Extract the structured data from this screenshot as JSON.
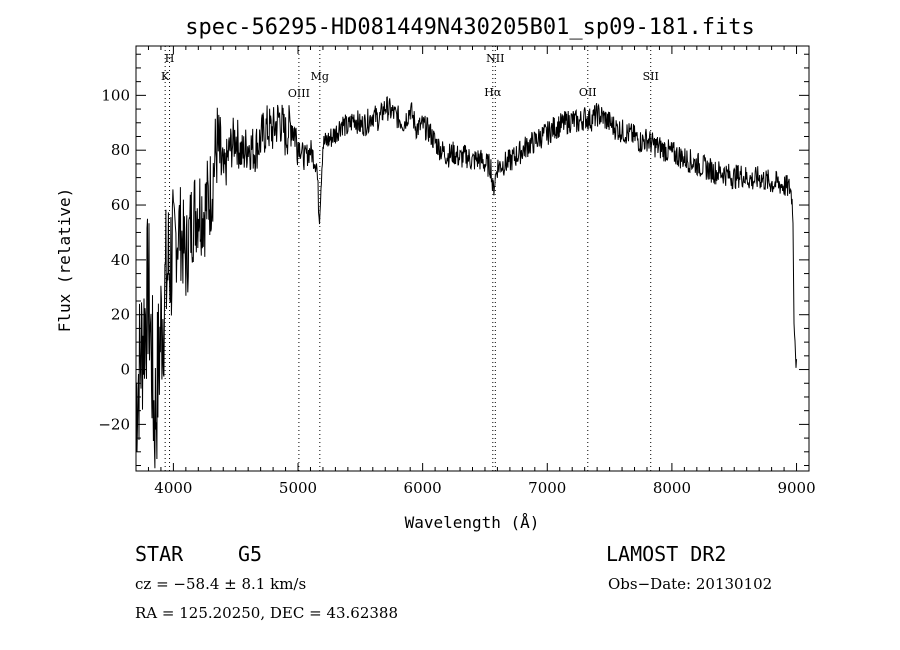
{
  "chart_data": {
    "type": "line",
    "title": "spec-56295-HD081449N430205B01_sp09-181.fits",
    "xlabel": "Wavelength (Å)",
    "ylabel": "Flux (relative)",
    "xlim": [
      3700,
      9100
    ],
    "ylim": [
      -37,
      118
    ],
    "x_ticks": [
      4000,
      5000,
      6000,
      7000,
      8000,
      9000
    ],
    "y_ticks": [
      -20,
      0,
      20,
      40,
      60,
      80,
      100
    ],
    "grid": false,
    "series": [
      {
        "x": [
          3700,
          3750,
          3800,
          3850,
          3900,
          3950,
          4000,
          4050,
          4100,
          4150,
          4200,
          4250,
          4300,
          4350,
          4400,
          4450,
          4500,
          4550,
          4600,
          4650,
          4700,
          4750,
          4800,
          4850,
          4900,
          4950,
          5000,
          5050,
          5100,
          5150,
          5170,
          5200,
          5250,
          5300,
          5350,
          5400,
          5450,
          5500,
          5550,
          5600,
          5650,
          5700,
          5750,
          5800,
          5850,
          5900,
          5950,
          6000,
          6050,
          6100,
          6150,
          6200,
          6250,
          6300,
          6350,
          6400,
          6450,
          6500,
          6550,
          6563,
          6600,
          6650,
          6700,
          6750,
          6800,
          6850,
          6900,
          6950,
          7000,
          7050,
          7100,
          7150,
          7200,
          7250,
          7300,
          7350,
          7400,
          7450,
          7500,
          7550,
          7600,
          7650,
          7700,
          7750,
          7800,
          7850,
          7900,
          7950,
          8000,
          8050,
          8100,
          8150,
          8200,
          8250,
          8300,
          8350,
          8400,
          8450,
          8500,
          8550,
          8600,
          8650,
          8700,
          8750,
          8800,
          8850,
          8900,
          8950,
          8970,
          8980,
          9000
        ],
        "y": [
          -10,
          10,
          30,
          -20,
          15,
          35,
          45,
          52,
          40,
          55,
          60,
          58,
          65,
          82,
          70,
          80,
          85,
          78,
          82,
          80,
          84,
          88,
          87,
          92,
          85,
          90,
          83,
          77,
          80,
          75,
          55,
          82,
          84,
          86,
          90,
          88,
          92,
          89,
          90,
          93,
          91,
          96,
          94,
          92,
          90,
          95,
          88,
          89,
          87,
          83,
          80,
          78,
          79,
          77,
          78,
          76,
          77,
          75,
          74,
          65,
          74,
          75,
          76,
          78,
          80,
          82,
          83,
          85,
          86,
          88,
          89,
          90,
          91,
          90,
          92,
          91,
          93,
          92,
          90,
          88,
          87,
          86,
          85,
          83,
          84,
          82,
          81,
          80,
          79,
          78,
          77,
          76,
          75,
          74,
          73,
          72,
          72,
          71,
          70,
          71,
          70,
          69,
          70,
          69,
          68,
          68,
          67,
          66,
          60,
          20,
          0
        ]
      }
    ],
    "lines": [
      {
        "name": "K",
        "wavelength": 3934
      },
      {
        "name": "H",
        "wavelength": 3969
      },
      {
        "name": "OIII",
        "wavelength": 5007
      },
      {
        "name": "Mg",
        "wavelength": 5175
      },
      {
        "name": "NII",
        "wavelength": 6583
      },
      {
        "name": "Hα",
        "wavelength": 6563
      },
      {
        "name": "OII",
        "wavelength": 7325
      },
      {
        "name": "SII",
        "wavelength": 7830
      }
    ]
  },
  "info": {
    "class": "STAR",
    "subclass": "G5",
    "survey": "LAMOST DR2",
    "cz": "cz = −58.4 ± 8.1 km/s",
    "obs_date": "Obs−Date: 20130102",
    "coords": "RA = 125.20250, DEC =  43.62388"
  }
}
